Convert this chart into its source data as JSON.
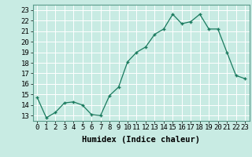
{
  "x": [
    0,
    1,
    2,
    3,
    4,
    5,
    6,
    7,
    8,
    9,
    10,
    11,
    12,
    13,
    14,
    15,
    16,
    17,
    18,
    19,
    20,
    21,
    22,
    23
  ],
  "y": [
    14.7,
    12.8,
    13.3,
    14.2,
    14.3,
    14.0,
    13.1,
    13.0,
    14.9,
    15.7,
    18.1,
    19.0,
    19.5,
    20.7,
    21.2,
    22.6,
    21.7,
    21.9,
    22.6,
    21.2,
    21.2,
    19.0,
    16.8,
    16.5
  ],
  "xlabel": "Humidex (Indice chaleur)",
  "ylim": [
    12.5,
    23.5
  ],
  "xlim": [
    -0.5,
    23.5
  ],
  "yticks": [
    13,
    14,
    15,
    16,
    17,
    18,
    19,
    20,
    21,
    22,
    23
  ],
  "xticks": [
    0,
    1,
    2,
    3,
    4,
    5,
    6,
    7,
    8,
    9,
    10,
    11,
    12,
    13,
    14,
    15,
    16,
    17,
    18,
    19,
    20,
    21,
    22,
    23
  ],
  "line_color": "#1a7a5e",
  "marker_color": "#1a7a5e",
  "bg_color": "#c8ebe3",
  "grid_color": "#ffffff",
  "label_fontsize": 7.5,
  "tick_fontsize": 6.5
}
